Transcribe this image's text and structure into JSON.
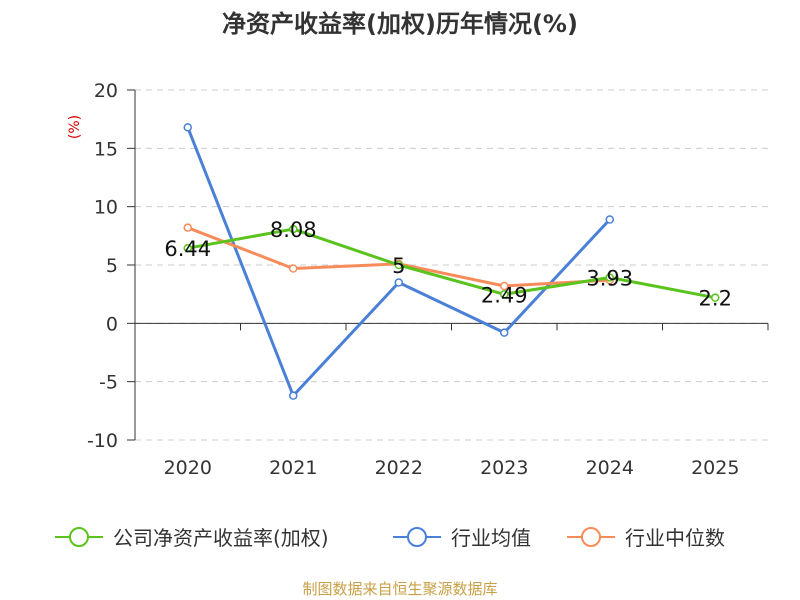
{
  "chart_data": {
    "type": "line",
    "title": "净资产收益率(加权)历年情况(%)",
    "ylabel": "(%)",
    "xlabel": "",
    "categories": [
      "2020",
      "2021",
      "2022",
      "2023",
      "2024",
      "2025"
    ],
    "ylim": [
      -10,
      20
    ],
    "yticks": [
      -10,
      -5,
      0,
      5,
      10,
      15,
      20
    ],
    "grid": true,
    "legend_position": "bottom",
    "series": [
      {
        "name": "公司净资产收益率(加权)",
        "color": "#5ac31e",
        "values": [
          6.44,
          8.08,
          5,
          2.49,
          3.93,
          2.2
        ],
        "labels": [
          "6.44",
          "8.08",
          "5",
          "2.49",
          "3.93",
          "2.2"
        ]
      },
      {
        "name": "行业均值",
        "color": "#4a80d8",
        "values": [
          16.8,
          -6.2,
          3.5,
          -0.8,
          8.9,
          null
        ]
      },
      {
        "name": "行业中位数",
        "color": "#f78c5a",
        "values": [
          8.2,
          4.7,
          5.1,
          3.2,
          3.7,
          null
        ]
      }
    ]
  },
  "source": "制图数据来自恒生聚源数据库",
  "colors": {
    "axis": "#333333",
    "grid": "#cccccc",
    "ylabel": "#d40000"
  }
}
